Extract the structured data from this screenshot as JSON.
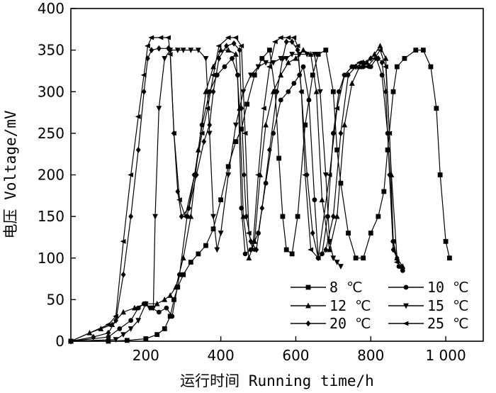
{
  "chart_data": {
    "type": "line",
    "xlabel": "运行时间 Running time/h",
    "ylabel": "电压 Voltage/mV",
    "xlim": [
      0,
      1100
    ],
    "ylim": [
      0,
      400
    ],
    "x_ticks": [
      200,
      400,
      600,
      800,
      1000
    ],
    "x_tick_labels": [
      "200",
      "400",
      "600",
      "800",
      "1 000"
    ],
    "y_ticks": [
      0,
      50,
      100,
      150,
      200,
      250,
      300,
      350,
      400
    ],
    "y_tick_labels": [
      "0",
      "50",
      "100",
      "150",
      "200",
      "250",
      "300",
      "350",
      "400"
    ],
    "grid": false,
    "legend_position": "bottom-right",
    "series": [
      {
        "name": "8 ℃",
        "marker": "square",
        "points": [
          [
            0,
            0
          ],
          [
            100,
            0
          ],
          [
            150,
            1
          ],
          [
            200,
            3
          ],
          [
            230,
            8
          ],
          [
            250,
            15
          ],
          [
            265,
            30
          ],
          [
            275,
            50
          ],
          [
            285,
            65
          ],
          [
            300,
            80
          ],
          [
            320,
            95
          ],
          [
            340,
            105
          ],
          [
            360,
            115
          ],
          [
            380,
            135
          ],
          [
            400,
            170
          ],
          [
            420,
            210
          ],
          [
            440,
            240
          ],
          [
            455,
            255
          ],
          [
            470,
            285
          ],
          [
            490,
            320
          ],
          [
            510,
            340
          ],
          [
            530,
            350
          ],
          [
            545,
            300
          ],
          [
            555,
            220
          ],
          [
            565,
            150
          ],
          [
            575,
            110
          ],
          [
            590,
            105
          ],
          [
            605,
            150
          ],
          [
            625,
            260
          ],
          [
            645,
            320
          ],
          [
            660,
            345
          ],
          [
            680,
            350
          ],
          [
            700,
            300
          ],
          [
            710,
            230
          ],
          [
            720,
            190
          ],
          [
            740,
            130
          ],
          [
            760,
            100
          ],
          [
            780,
            100
          ],
          [
            800,
            130
          ],
          [
            820,
            150
          ],
          [
            835,
            180
          ],
          [
            845,
            230
          ],
          [
            860,
            300
          ],
          [
            870,
            330
          ],
          [
            890,
            340
          ],
          [
            920,
            350
          ],
          [
            940,
            350
          ],
          [
            960,
            330
          ],
          [
            975,
            280
          ],
          [
            985,
            200
          ],
          [
            1000,
            120
          ],
          [
            1010,
            100
          ]
        ]
      },
      {
        "name": "10 ℃",
        "marker": "circle",
        "points": [
          [
            0,
            0
          ],
          [
            100,
            5
          ],
          [
            130,
            15
          ],
          [
            160,
            25
          ],
          [
            180,
            40
          ],
          [
            195,
            45
          ],
          [
            215,
            40
          ],
          [
            235,
            35
          ],
          [
            255,
            40
          ],
          [
            270,
            30
          ],
          [
            290,
            80
          ],
          [
            310,
            150
          ],
          [
            330,
            200
          ],
          [
            350,
            260
          ],
          [
            370,
            300
          ],
          [
            390,
            320
          ],
          [
            410,
            330
          ],
          [
            430,
            340
          ],
          [
            445,
            320
          ],
          [
            455,
            160
          ],
          [
            465,
            105
          ],
          [
            480,
            110
          ],
          [
            500,
            130
          ],
          [
            520,
            190
          ],
          [
            540,
            250
          ],
          [
            560,
            290
          ],
          [
            580,
            300
          ],
          [
            595,
            310
          ],
          [
            610,
            320
          ],
          [
            620,
            330
          ],
          [
            635,
            290
          ],
          [
            650,
            170
          ],
          [
            660,
            100
          ],
          [
            670,
            105
          ],
          [
            685,
            150
          ],
          [
            700,
            250
          ],
          [
            715,
            300
          ],
          [
            730,
            320
          ],
          [
            750,
            330
          ],
          [
            780,
            330
          ],
          [
            800,
            330
          ],
          [
            815,
            340
          ],
          [
            830,
            320
          ],
          [
            845,
            250
          ],
          [
            860,
            120
          ],
          [
            875,
            90
          ],
          [
            885,
            85
          ]
        ]
      },
      {
        "name": "12 ℃",
        "marker": "triangle-up",
        "points": [
          [
            0,
            0
          ],
          [
            50,
            10
          ],
          [
            80,
            15
          ],
          [
            110,
            20
          ],
          [
            140,
            35
          ],
          [
            170,
            40
          ],
          [
            200,
            45
          ],
          [
            230,
            45
          ],
          [
            250,
            50
          ],
          [
            265,
            55
          ],
          [
            280,
            65
          ],
          [
            300,
            100
          ],
          [
            320,
            150
          ],
          [
            340,
            230
          ],
          [
            360,
            300
          ],
          [
            380,
            330
          ],
          [
            400,
            350
          ],
          [
            420,
            350
          ],
          [
            440,
            345
          ],
          [
            450,
            280
          ],
          [
            460,
            150
          ],
          [
            475,
            100
          ],
          [
            490,
            120
          ],
          [
            505,
            200
          ],
          [
            520,
            260
          ],
          [
            540,
            300
          ],
          [
            560,
            320
          ],
          [
            580,
            335
          ],
          [
            600,
            340
          ],
          [
            620,
            350
          ],
          [
            640,
            345
          ],
          [
            655,
            300
          ],
          [
            670,
            170
          ],
          [
            690,
            110
          ],
          [
            710,
            150
          ],
          [
            730,
            260
          ],
          [
            750,
            310
          ],
          [
            770,
            330
          ],
          [
            790,
            335
          ],
          [
            810,
            345
          ],
          [
            825,
            355
          ],
          [
            840,
            340
          ],
          [
            855,
            200
          ],
          [
            870,
            100
          ],
          [
            885,
            90
          ]
        ]
      },
      {
        "name": "15 ℃",
        "marker": "triangle-down",
        "points": [
          [
            0,
            0
          ],
          [
            120,
            2
          ],
          [
            140,
            8
          ],
          [
            160,
            15
          ],
          [
            180,
            25
          ],
          [
            200,
            45
          ],
          [
            210,
            40
          ],
          [
            220,
            40
          ],
          [
            225,
            150
          ],
          [
            235,
            280
          ],
          [
            250,
            340
          ],
          [
            265,
            350
          ],
          [
            285,
            350
          ],
          [
            300,
            350
          ],
          [
            320,
            350
          ],
          [
            340,
            350
          ],
          [
            360,
            340
          ],
          [
            370,
            250
          ],
          [
            380,
            150
          ],
          [
            390,
            110
          ],
          [
            400,
            130
          ],
          [
            420,
            200
          ],
          [
            440,
            260
          ],
          [
            460,
            300
          ],
          [
            480,
            320
          ],
          [
            500,
            330
          ],
          [
            520,
            335
          ],
          [
            540,
            335
          ],
          [
            560,
            340
          ],
          [
            575,
            340
          ],
          [
            590,
            345
          ],
          [
            610,
            345
          ],
          [
            630,
            345
          ],
          [
            650,
            345
          ],
          [
            665,
            300
          ],
          [
            680,
            200
          ],
          [
            690,
            120
          ],
          [
            700,
            100
          ],
          [
            710,
            95
          ],
          [
            720,
            90
          ]
        ]
      },
      {
        "name": "20 ℃",
        "marker": "diamond",
        "points": [
          [
            0,
            0
          ],
          [
            60,
            5
          ],
          [
            100,
            10
          ],
          [
            120,
            25
          ],
          [
            140,
            80
          ],
          [
            160,
            150
          ],
          [
            180,
            230
          ],
          [
            195,
            300
          ],
          [
            205,
            340
          ],
          [
            215,
            350
          ],
          [
            235,
            352
          ],
          [
            260,
            352
          ],
          [
            265,
            350
          ],
          [
            275,
            250
          ],
          [
            285,
            180
          ],
          [
            295,
            150
          ],
          [
            315,
            160
          ],
          [
            335,
            200
          ],
          [
            355,
            240
          ],
          [
            370,
            260
          ],
          [
            380,
            300
          ],
          [
            395,
            340
          ],
          [
            415,
            355
          ],
          [
            435,
            358
          ],
          [
            450,
            350
          ],
          [
            455,
            280
          ],
          [
            462,
            200
          ],
          [
            468,
            150
          ],
          [
            480,
            120
          ],
          [
            495,
            110
          ],
          [
            510,
            160
          ],
          [
            530,
            230
          ],
          [
            550,
            300
          ],
          [
            565,
            340
          ],
          [
            575,
            360
          ],
          [
            590,
            360
          ],
          [
            605,
            350
          ],
          [
            615,
            300
          ],
          [
            630,
            200
          ],
          [
            645,
            130
          ],
          [
            660,
            100
          ],
          [
            680,
            110
          ],
          [
            700,
            150
          ],
          [
            720,
            250
          ],
          [
            740,
            320
          ],
          [
            760,
            330
          ],
          [
            780,
            335
          ],
          [
            800,
            340
          ],
          [
            820,
            340
          ],
          [
            830,
            335
          ],
          [
            840,
            300
          ],
          [
            850,
            200
          ],
          [
            860,
            110
          ],
          [
            870,
            100
          ]
        ]
      },
      {
        "name": "25 ℃",
        "marker": "arrow-left",
        "points": [
          [
            0,
            0
          ],
          [
            100,
            20
          ],
          [
            120,
            30
          ],
          [
            140,
            120
          ],
          [
            160,
            200
          ],
          [
            180,
            270
          ],
          [
            195,
            320
          ],
          [
            205,
            355
          ],
          [
            215,
            365
          ],
          [
            240,
            365
          ],
          [
            260,
            365
          ],
          [
            265,
            345
          ],
          [
            275,
            250
          ],
          [
            290,
            170
          ],
          [
            305,
            150
          ],
          [
            330,
            200
          ],
          [
            350,
            250
          ],
          [
            365,
            280
          ],
          [
            380,
            320
          ],
          [
            395,
            355
          ],
          [
            420,
            365
          ],
          [
            440,
            365
          ],
          [
            455,
            355
          ],
          [
            465,
            250
          ],
          [
            475,
            130
          ],
          [
            485,
            110
          ],
          [
            500,
            200
          ],
          [
            515,
            280
          ],
          [
            530,
            330
          ],
          [
            545,
            360
          ],
          [
            560,
            365
          ],
          [
            580,
            365
          ],
          [
            595,
            365
          ],
          [
            605,
            355
          ],
          [
            615,
            300
          ],
          [
            625,
            200
          ],
          [
            640,
            110
          ],
          [
            660,
            100
          ],
          [
            690,
            200
          ],
          [
            710,
            280
          ],
          [
            730,
            320
          ],
          [
            750,
            330
          ],
          [
            770,
            335
          ],
          [
            790,
            330
          ],
          [
            810,
            340
          ],
          [
            825,
            350
          ],
          [
            840,
            330
          ],
          [
            850,
            250
          ],
          [
            860,
            120
          ],
          [
            870,
            95
          ],
          [
            880,
            90
          ]
        ]
      }
    ]
  }
}
